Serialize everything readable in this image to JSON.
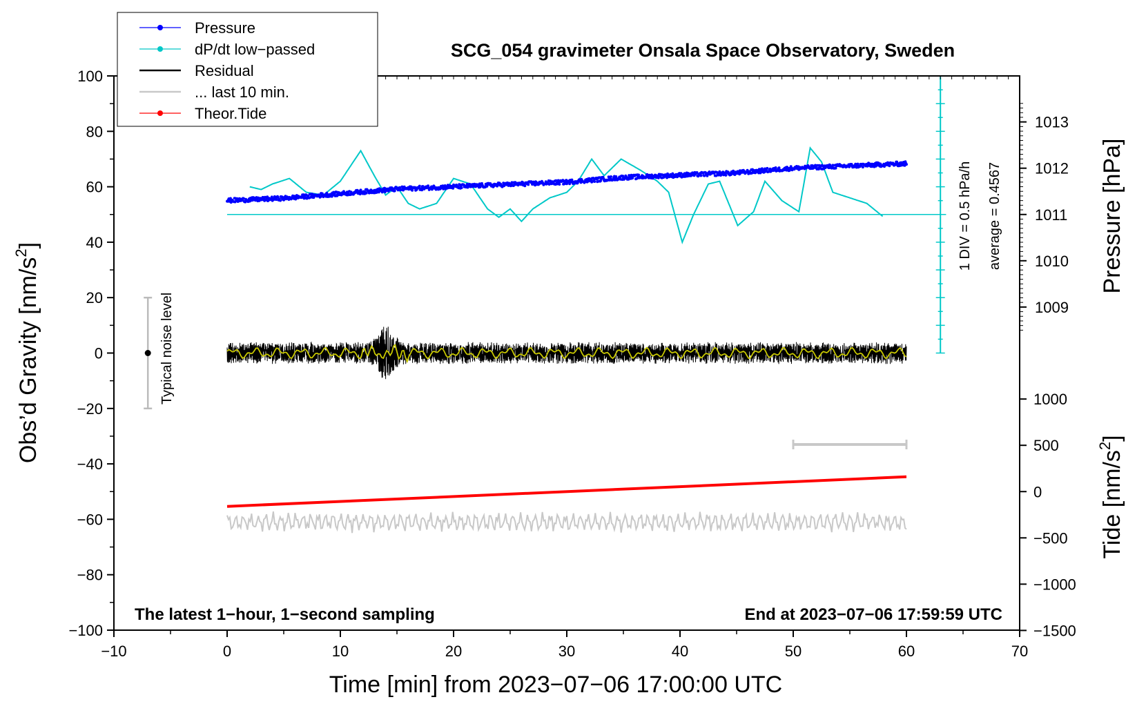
{
  "chart_data": {
    "type": "line",
    "title": "SCG_054 gravimeter Onsala Space Observatory, Sweden",
    "xlabel": "Time [min] from 2023−07−06 17:00:00 UTC",
    "ylabel_left": "Obs’d Gravity [nm/s",
    "ylabel_left_sup": "2",
    "ylabel_left_end": "]",
    "ylabel_pressure": "Pressure [hPa]",
    "ylabel_tide": "Tide [nm/s",
    "ylabel_tide_sup": "2",
    "ylabel_tide_end": "]",
    "xlim": [
      -10,
      70
    ],
    "ylim": [
      -100,
      100
    ],
    "x_ticks": [
      {
        "v": -10,
        "label": "−10"
      },
      {
        "v": 0,
        "label": "0"
      },
      {
        "v": 10,
        "label": "10"
      },
      {
        "v": 20,
        "label": "20"
      },
      {
        "v": 30,
        "label": "30"
      },
      {
        "v": 40,
        "label": "40"
      },
      {
        "v": 50,
        "label": "50"
      },
      {
        "v": 60,
        "label": "60"
      },
      {
        "v": 70,
        "label": "70"
      }
    ],
    "y_ticks": [
      {
        "v": 100,
        "label": "100"
      },
      {
        "v": 80,
        "label": "80"
      },
      {
        "v": 60,
        "label": "60"
      },
      {
        "v": 40,
        "label": "40"
      },
      {
        "v": 20,
        "label": "20"
      },
      {
        "v": 0,
        "label": "0"
      },
      {
        "v": -20,
        "label": "−20"
      },
      {
        "v": -40,
        "label": "−40"
      },
      {
        "v": -60,
        "label": "−60"
      },
      {
        "v": -80,
        "label": "−80"
      },
      {
        "v": -100,
        "label": "−100"
      }
    ],
    "pressure_axis": {
      "ticks": [
        {
          "v": 1013,
          "label": "1013"
        },
        {
          "v": 1012,
          "label": "1012"
        },
        {
          "v": 1011,
          "label": "1011"
        },
        {
          "v": 1010,
          "label": "1010"
        },
        {
          "v": 1009,
          "label": "1009"
        }
      ],
      "ref": {
        "hpa": 1011,
        "grav": 50
      },
      "grav_per_hpa": 16.7
    },
    "tide_axis": {
      "ticks": [
        {
          "v": 1000,
          "label": "1000"
        },
        {
          "v": 500,
          "label": "500"
        },
        {
          "v": 0,
          "label": "0"
        },
        {
          "v": -500,
          "label": "−500"
        },
        {
          "v": -1000,
          "label": "−1000"
        },
        {
          "v": -1500,
          "label": "−1500"
        }
      ],
      "ref": {
        "tide": 0,
        "grav": -50
      },
      "grav_per_unit": 0.0334
    },
    "series": [
      {
        "name": "Pressure",
        "color": "#0000ff",
        "style": "dots",
        "points": [
          [
            0,
            1011.3
          ],
          [
            5,
            1011.35
          ],
          [
            10,
            1011.45
          ],
          [
            15,
            1011.55
          ],
          [
            20,
            1011.6
          ],
          [
            25,
            1011.65
          ],
          [
            30,
            1011.7
          ],
          [
            35,
            1011.8
          ],
          [
            40,
            1011.85
          ],
          [
            45,
            1011.9
          ],
          [
            50,
            1012.0
          ],
          [
            55,
            1012.05
          ],
          [
            60,
            1012.1
          ]
        ]
      },
      {
        "name": "dP/dt low−passed",
        "color": "#00c8c8",
        "style": "line",
        "points": [
          [
            2,
            60
          ],
          [
            3,
            59
          ],
          [
            4,
            61
          ],
          [
            5.5,
            63
          ],
          [
            7,
            58
          ],
          [
            8.5,
            57
          ],
          [
            10,
            62
          ],
          [
            11.8,
            73
          ],
          [
            13,
            64
          ],
          [
            14,
            57
          ],
          [
            15,
            60
          ],
          [
            16,
            54
          ],
          [
            17,
            52
          ],
          [
            18.5,
            54
          ],
          [
            20,
            63
          ],
          [
            21.5,
            61
          ],
          [
            23,
            52
          ],
          [
            24,
            49
          ],
          [
            25,
            52
          ],
          [
            26,
            47.5
          ],
          [
            27,
            52
          ],
          [
            28.5,
            56
          ],
          [
            30,
            58
          ],
          [
            31,
            62
          ],
          [
            32.2,
            70
          ],
          [
            33.3,
            64
          ],
          [
            34.8,
            70
          ],
          [
            36.5,
            66
          ],
          [
            38,
            62
          ],
          [
            39,
            58
          ],
          [
            40.2,
            40
          ],
          [
            41.2,
            50
          ],
          [
            42.5,
            61
          ],
          [
            43.5,
            62
          ],
          [
            45.1,
            46
          ],
          [
            46.5,
            51
          ],
          [
            47.5,
            62
          ],
          [
            49,
            55
          ],
          [
            50.5,
            51
          ],
          [
            51.5,
            74
          ],
          [
            52.5,
            69
          ],
          [
            53.5,
            58
          ],
          [
            55,
            56
          ],
          [
            56.5,
            54
          ],
          [
            58,
            49
          ]
        ]
      },
      {
        "name": "Residual",
        "color": "#000000",
        "style": "noise",
        "amp": 3
      },
      {
        "name": "... last 10 min.",
        "color": "#c8c8c8",
        "style": "noise_bar"
      },
      {
        "name": "Theor.Tide",
        "color": "#ff0000",
        "style": "line",
        "points": [
          [
            0,
            -160
          ],
          [
            60,
            160
          ]
        ]
      }
    ],
    "legend": [
      {
        "label": "Pressure",
        "color": "#0000ff",
        "marker": true
      },
      {
        "label": "dP/dt low−passed",
        "color": "#00c8c8",
        "marker": true
      },
      {
        "label": "Residual",
        "color": "#000000",
        "marker": false
      },
      {
        "label": "... last 10 min.",
        "color": "#c8c8c8",
        "marker": false
      },
      {
        "label": "Theor.Tide",
        "color": "#ff0000",
        "marker": true
      }
    ],
    "annotations": {
      "noise_level": "Typical noise level",
      "scale_div": "1 DIV = 0.5 hPa/h",
      "average": "average = 0.4567",
      "bottom_left": "The latest 1−hour, 1−second sampling",
      "bottom_right": "End at 2023−07−06 17:59:59 UTC"
    },
    "colors": {
      "pressure": "#0000ff",
      "dpdt": "#00c8c8",
      "residual": "#000000",
      "smoothed": "#c8c800",
      "last10": "#c8c8c8",
      "tide": "#ff0000"
    }
  }
}
